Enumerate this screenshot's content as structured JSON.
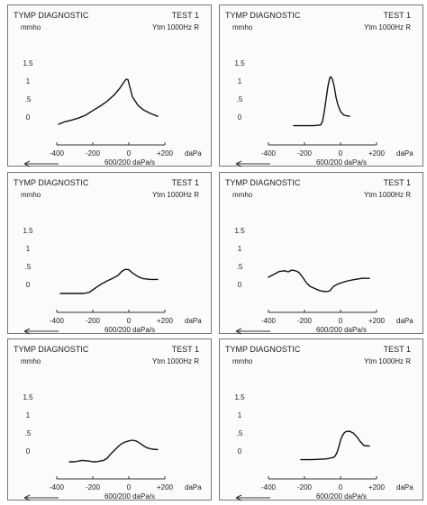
{
  "chart_data": [
    {
      "type": "line",
      "title": "TYMP DIAGNOSTIC",
      "test_label": "TEST 1",
      "probe_label": "Ytm 1000Hz R",
      "ylabel": "mmho",
      "xlabel": "daPa",
      "rate_label": "600/200 daPa/s",
      "ylim": [
        -0.35,
        1.5
      ],
      "xlim": [
        -400,
        200
      ],
      "yticks": [
        0,
        0.5,
        1,
        1.5
      ],
      "ytick_labels": [
        "0",
        ".5",
        "1",
        "1.5"
      ],
      "xticks": [
        -400,
        -200,
        0,
        200
      ],
      "xtick_labels": [
        "-400",
        "-200",
        "0",
        "+200"
      ],
      "series": [
        {
          "x": [
            -390,
            -360,
            -320,
            -280,
            -240,
            -200,
            -160,
            -120,
            -80,
            -50,
            -30,
            -15,
            -5,
            5,
            20,
            50,
            80,
            120,
            160
          ],
          "y": [
            -0.2,
            -0.14,
            -0.09,
            -0.03,
            0.05,
            0.18,
            0.3,
            0.44,
            0.62,
            0.8,
            0.95,
            1.05,
            1.04,
            0.85,
            0.56,
            0.33,
            0.2,
            0.1,
            0.02
          ]
        }
      ]
    },
    {
      "type": "line",
      "title": "TYMP DIAGNOSTIC",
      "test_label": "TEST 1",
      "probe_label": "Ytm 1000Hz R",
      "ylabel": "mmho",
      "xlabel": "daPa",
      "rate_label": "600/200 daPa/s",
      "ylim": [
        -0.35,
        1.5
      ],
      "xlim": [
        -400,
        200
      ],
      "yticks": [
        0,
        0.5,
        1,
        1.5
      ],
      "ytick_labels": [
        "0",
        ".5",
        "1",
        "1.5"
      ],
      "xticks": [
        -400,
        -200,
        0,
        200
      ],
      "xtick_labels": [
        "-400",
        "-200",
        "0",
        "+200"
      ],
      "series": [
        {
          "x": [
            -260,
            -200,
            -150,
            -110,
            -100,
            -90,
            -80,
            -70,
            -60,
            -55,
            -45,
            -35,
            -25,
            -15,
            0,
            20,
            50
          ],
          "y": [
            -0.24,
            -0.24,
            -0.24,
            -0.22,
            -0.12,
            0.15,
            0.5,
            0.85,
            1.08,
            1.12,
            1.05,
            0.85,
            0.55,
            0.35,
            0.15,
            0.05,
            0.02
          ]
        }
      ]
    },
    {
      "type": "line",
      "title": "TYMP DIAGNOSTIC",
      "test_label": "TEST 1",
      "probe_label": "Ytm 1000Hz R",
      "ylabel": "mmho",
      "xlabel": "daPa",
      "rate_label": "600/200 daPa/s",
      "ylim": [
        -0.35,
        1.5
      ],
      "xlim": [
        -400,
        200
      ],
      "yticks": [
        0,
        0.5,
        1,
        1.5
      ],
      "ytick_labels": [
        "0",
        ".5",
        "1",
        "1.5"
      ],
      "xticks": [
        -400,
        -200,
        0,
        200
      ],
      "xtick_labels": [
        "-400",
        "-200",
        "0",
        "+200"
      ],
      "series": [
        {
          "x": [
            -380,
            -320,
            -280,
            -250,
            -220,
            -200,
            -180,
            -150,
            -120,
            -90,
            -60,
            -40,
            -20,
            0,
            20,
            50,
            80,
            120,
            160
          ],
          "y": [
            -0.25,
            -0.25,
            -0.25,
            -0.25,
            -0.22,
            -0.15,
            -0.08,
            0.02,
            0.1,
            0.17,
            0.25,
            0.36,
            0.42,
            0.41,
            0.32,
            0.22,
            0.16,
            0.14,
            0.14
          ]
        }
      ]
    },
    {
      "type": "line",
      "title": "TYMP DIAGNOSTIC",
      "test_label": "TEST 1",
      "probe_label": "Ytm 1000Hz R",
      "ylabel": "mmho",
      "xlabel": "daPa",
      "rate_label": "600/200 daPa/s",
      "ylim": [
        -0.35,
        1.5
      ],
      "xlim": [
        -400,
        200
      ],
      "yticks": [
        0,
        0.5,
        1,
        1.5
      ],
      "ytick_labels": [
        "0",
        ".5",
        "1",
        "1.5"
      ],
      "xticks": [
        -400,
        -200,
        0,
        200
      ],
      "xtick_labels": [
        "-400",
        "-200",
        "0",
        "+200"
      ],
      "series": [
        {
          "x": [
            -400,
            -370,
            -340,
            -310,
            -290,
            -270,
            -250,
            -230,
            -210,
            -190,
            -170,
            -140,
            -110,
            -80,
            -60,
            -40,
            -20,
            0,
            40,
            80,
            120,
            160
          ],
          "y": [
            0.2,
            0.28,
            0.36,
            0.38,
            0.35,
            0.4,
            0.38,
            0.33,
            0.2,
            0.05,
            -0.05,
            -0.12,
            -0.18,
            -0.2,
            -0.18,
            -0.06,
            0.0,
            0.04,
            0.1,
            0.14,
            0.17,
            0.17
          ]
        }
      ]
    },
    {
      "type": "line",
      "title": "TYMP DIAGNOSTIC",
      "test_label": "TEST 1",
      "probe_label": "Ytm 1000Hz R",
      "ylabel": "mmho",
      "xlabel": "daPa",
      "rate_label": "600/200 daPa/s",
      "ylim": [
        -0.35,
        1.5
      ],
      "xlim": [
        -400,
        200
      ],
      "yticks": [
        0,
        0.5,
        1,
        1.5
      ],
      "ytick_labels": [
        "0",
        ".5",
        "1",
        "1.5"
      ],
      "xticks": [
        -400,
        -200,
        0,
        200
      ],
      "xtick_labels": [
        "-400",
        "-200",
        "0",
        "+200"
      ],
      "series": [
        {
          "x": [
            -330,
            -300,
            -280,
            -260,
            -240,
            -220,
            -200,
            -180,
            -160,
            -140,
            -120,
            -100,
            -80,
            -60,
            -40,
            -20,
            0,
            20,
            40,
            60,
            80,
            100,
            130,
            160
          ],
          "y": [
            -0.3,
            -0.3,
            -0.28,
            -0.26,
            -0.27,
            -0.28,
            -0.3,
            -0.3,
            -0.28,
            -0.26,
            -0.2,
            -0.08,
            0.02,
            0.12,
            0.2,
            0.25,
            0.28,
            0.3,
            0.28,
            0.22,
            0.15,
            0.09,
            0.05,
            0.04
          ]
        }
      ]
    },
    {
      "type": "line",
      "title": "TYMP DIAGNOSTIC",
      "test_label": "TEST 1",
      "probe_label": "Ytm 1000Hz R",
      "ylabel": "mmho",
      "xlabel": "daPa",
      "rate_label": "600/200 daPa/s",
      "ylim": [
        -0.35,
        1.5
      ],
      "xlim": [
        -400,
        200
      ],
      "yticks": [
        0,
        0.5,
        1,
        1.5
      ],
      "ytick_labels": [
        "0",
        ".5",
        "1",
        "1.5"
      ],
      "xticks": [
        -400,
        -200,
        0,
        200
      ],
      "xtick_labels": [
        "-400",
        "-200",
        "0",
        "+200"
      ],
      "series": [
        {
          "x": [
            -220,
            -160,
            -120,
            -80,
            -60,
            -40,
            -30,
            -20,
            -10,
            0,
            10,
            20,
            30,
            50,
            70,
            90,
            110,
            130,
            160
          ],
          "y": [
            -0.24,
            -0.24,
            -0.23,
            -0.22,
            -0.2,
            -0.18,
            -0.14,
            -0.05,
            0.1,
            0.3,
            0.42,
            0.5,
            0.54,
            0.55,
            0.5,
            0.4,
            0.26,
            0.15,
            0.14
          ]
        }
      ]
    }
  ]
}
